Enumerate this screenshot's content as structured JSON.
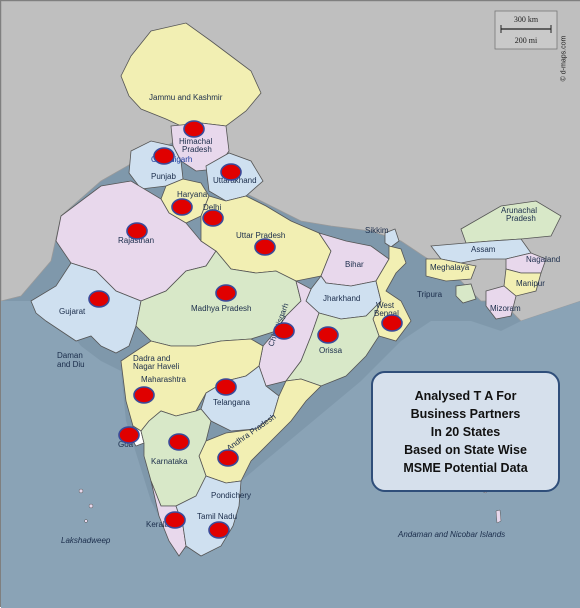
{
  "scale_bar": {
    "km": "300 km",
    "mi": "200 mi"
  },
  "credit": "© d-maps.com",
  "states": [
    {
      "name": "Jammu and Kashmir",
      "color": "#f2efb3"
    },
    {
      "name": "Himachal Pradesh",
      "color": "#e8d8ec"
    },
    {
      "name": "Chandigarh",
      "color": "#ffffff"
    },
    {
      "name": "Punjab",
      "color": "#cfe0f0"
    },
    {
      "name": "Uttarakhand",
      "color": "#cfe0f0"
    },
    {
      "name": "Haryana",
      "color": "#f2efb3"
    },
    {
      "name": "Delhi",
      "color": "#e8d8ec"
    },
    {
      "name": "Rajasthan",
      "color": "#e8d8ec"
    },
    {
      "name": "Uttar Pradesh",
      "color": "#f2efb3"
    },
    {
      "name": "Bihar",
      "color": "#e8d8ec"
    },
    {
      "name": "Sikkim",
      "color": "#cfe0f0"
    },
    {
      "name": "Arunachal Pradesh",
      "color": "#d8e8c8"
    },
    {
      "name": "Assam",
      "color": "#cfe0f0"
    },
    {
      "name": "Nagaland",
      "color": "#e8d8ec"
    },
    {
      "name": "Meghalaya",
      "color": "#f2efb3"
    },
    {
      "name": "Manipur",
      "color": "#f2efb3"
    },
    {
      "name": "Tripura",
      "color": "#d8e8c8"
    },
    {
      "name": "Mizoram",
      "color": "#e8d8ec"
    },
    {
      "name": "Gujarat",
      "color": "#cfe0f0"
    },
    {
      "name": "Madhya Pradesh",
      "color": "#d8e8c8"
    },
    {
      "name": "Jharkhand",
      "color": "#cfe0f0"
    },
    {
      "name": "West Bengal",
      "color": "#f2efb3"
    },
    {
      "name": "Chhattisgarh",
      "color": "#e8d8ec"
    },
    {
      "name": "Orissa",
      "color": "#d8e8c8"
    },
    {
      "name": "Daman and Diu",
      "color": "#ffffff"
    },
    {
      "name": "Dadra and Nagar Haveli",
      "color": "#ffffff"
    },
    {
      "name": "Maharashtra",
      "color": "#f2efb3"
    },
    {
      "name": "Telangana",
      "color": "#cfe0f0"
    },
    {
      "name": "Goa",
      "color": "#ffffff"
    },
    {
      "name": "Karnataka",
      "color": "#d8e8c8"
    },
    {
      "name": "Andhra Pradesh",
      "color": "#f2efb3"
    },
    {
      "name": "Pondichery",
      "color": "#ffffff"
    },
    {
      "name": "Tamil Nadu",
      "color": "#cfe0f0"
    },
    {
      "name": "Kerala",
      "color": "#e8d8ec"
    }
  ],
  "labels": {
    "jk": "Jammu and Kashmir",
    "hp1": "Himachal",
    "hp2": "Pradesh",
    "chandigarh": "Chandigarh",
    "punjab": "Punjab",
    "uttarakhand": "Uttarakhand",
    "haryana": "Haryana",
    "delhi": "Delhi",
    "rajasthan": "Rajasthan",
    "up": "Uttar Pradesh",
    "bihar": "Bihar",
    "sikkim": "Sikkim",
    "arunachal1": "Arunachal",
    "arunachal2": "Pradesh",
    "assam": "Assam",
    "nagaland": "Nagaland",
    "meghalaya": "Meghalaya",
    "manipur": "Manipur",
    "tripura": "Tripura",
    "mizoram": "Mizoram",
    "gujarat": "Gujarat",
    "mp": "Madhya Pradesh",
    "jharkhand": "Jharkhand",
    "wb1": "West",
    "wb2": "Bengal",
    "chhattisgarh": "Chhattisgarh",
    "orissa": "Orissa",
    "daman1": "Daman",
    "daman2": "and Diu",
    "dadra1": "Dadra and",
    "dadra2": "Nagar Haveli",
    "maharashtra": "Maharashtra",
    "telangana": "Telangana",
    "goa": "Goa",
    "karnataka": "Karnataka",
    "ap": "Andhra Pradesh",
    "pondichery": "Pondichery",
    "tn": "Tamil Nadu",
    "kerala": "Kerala",
    "lakshadweep": "Lakshadweep",
    "andaman": "Andaman and Nicobar Islands"
  },
  "marker_color": "#e00000",
  "marker_stroke": "#3a4a9a",
  "marker_count": 20,
  "callout": {
    "line1": "Analysed T A For",
    "line2": "Business Partners",
    "line3": "In 20 States",
    "line4": "Based on State Wise",
    "line5": "MSME Potential Data"
  }
}
